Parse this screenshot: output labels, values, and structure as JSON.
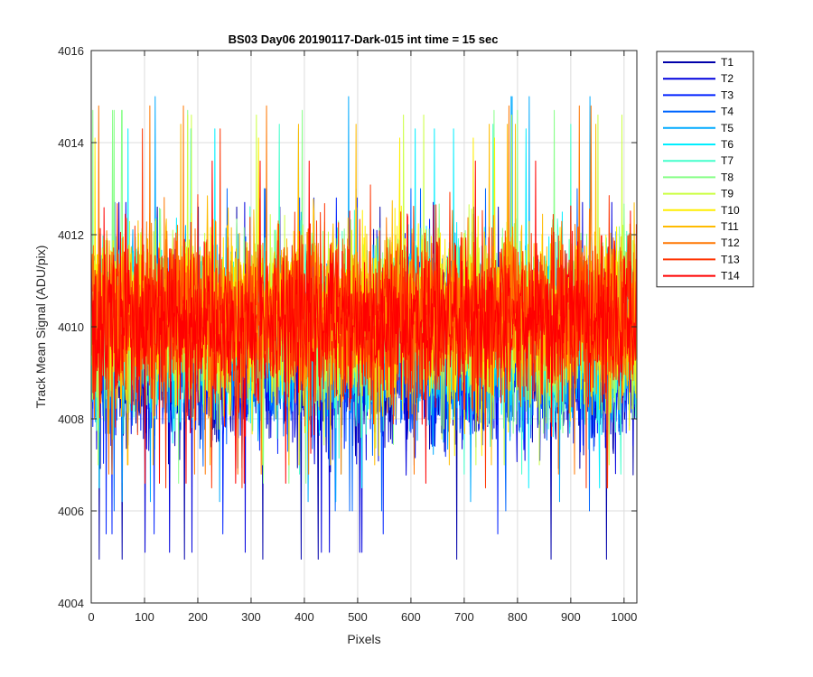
{
  "chart_data": {
    "type": "line",
    "title": "BS03 Day06 20190117-Dark-015 int time = 15 sec",
    "xlabel": "Pixels",
    "ylabel": "Track Mean Signal (ADU/pix)",
    "xlim": [
      0,
      1024
    ],
    "ylim": [
      4004,
      4016
    ],
    "xticks": [
      0,
      100,
      200,
      300,
      400,
      500,
      600,
      700,
      800,
      900,
      1000
    ],
    "yticks": [
      4004,
      4006,
      4008,
      4010,
      4012,
      4014,
      4016
    ],
    "grid": true,
    "legend_position": "outside-top-right",
    "n_points_per_series": 1024,
    "series": [
      {
        "name": "T1",
        "color": "#0000AA",
        "mean": 4009.2,
        "spread": 0.95,
        "min": 4004.95,
        "max": 4012.6
      },
      {
        "name": "T2",
        "color": "#0000DD",
        "mean": 4009.3,
        "spread": 0.95,
        "min": 4005.1,
        "max": 4012.7
      },
      {
        "name": "T3",
        "color": "#0022FF",
        "mean": 4009.4,
        "spread": 0.95,
        "min": 4005.5,
        "max": 4012.8
      },
      {
        "name": "T4",
        "color": "#0066FF",
        "mean": 4009.6,
        "spread": 0.95,
        "min": 4006.0,
        "max": 4013.0
      },
      {
        "name": "T5",
        "color": "#00AAFF",
        "mean": 4009.8,
        "spread": 0.95,
        "min": 4006.2,
        "max": 4015.0
      },
      {
        "name": "T6",
        "color": "#00EEFF",
        "mean": 4009.9,
        "spread": 0.95,
        "min": 4006.5,
        "max": 4014.3
      },
      {
        "name": "T7",
        "color": "#44FFCC",
        "mean": 4010.0,
        "spread": 0.95,
        "min": 4006.8,
        "max": 4014.4
      },
      {
        "name": "T8",
        "color": "#88FF88",
        "mean": 4010.1,
        "spread": 0.95,
        "min": 4006.6,
        "max": 4014.7
      },
      {
        "name": "T9",
        "color": "#CCFF44",
        "mean": 4010.2,
        "spread": 0.95,
        "min": 4007.0,
        "max": 4014.6
      },
      {
        "name": "T10",
        "color": "#FFEE00",
        "mean": 4010.2,
        "spread": 0.95,
        "min": 4007.2,
        "max": 4014.1
      },
      {
        "name": "T11",
        "color": "#FFBB00",
        "mean": 4010.3,
        "spread": 0.95,
        "min": 4007.0,
        "max": 4014.4
      },
      {
        "name": "T12",
        "color": "#FF7700",
        "mean": 4010.3,
        "spread": 0.95,
        "min": 4006.8,
        "max": 4014.8
      },
      {
        "name": "T13",
        "color": "#FF3300",
        "mean": 4010.2,
        "spread": 0.95,
        "min": 4006.5,
        "max": 4014.3
      },
      {
        "name": "T14",
        "color": "#FF0000",
        "mean": 4010.1,
        "spread": 0.9,
        "min": 4006.6,
        "max": 4013.6
      }
    ]
  }
}
